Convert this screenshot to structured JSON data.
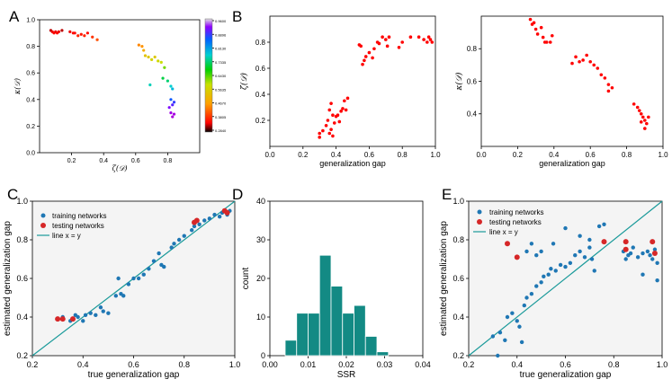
{
  "panel_letters": {
    "A": "A",
    "B": "B",
    "C": "C",
    "D": "D",
    "E": "E"
  },
  "colors": {
    "blue": "#1f77b4",
    "red": "#d62728",
    "teal": "#1a9a9a",
    "hist": "#138a84",
    "scatter_red": "#ff0000",
    "bg": "#f4f4f4"
  },
  "chart_data": [
    {
      "panel": "A",
      "type": "scatter",
      "xlabel": "ζ(𝒟)",
      "ylabel": "κ(𝒟)",
      "xlim": [
        0,
        1.0
      ],
      "ylim": [
        0,
        1.0
      ],
      "xticks": [
        "0.2",
        "0.4",
        "0.6",
        "0.8"
      ],
      "xtick_values": [
        0.2,
        0.4,
        0.6,
        0.8
      ],
      "yticks": [
        "0.0",
        "0.2",
        "0.4",
        "0.6",
        "0.8",
        "1.0"
      ],
      "ytick_values": [
        0.0,
        0.2,
        0.4,
        0.6,
        0.8,
        1.0
      ],
      "colorbar_ticks": [
        "0.9600",
        "0.8896",
        "0.8130",
        "0.7335",
        "0.6430",
        "0.5635",
        "0.4670",
        "0.3805",
        "0.2840"
      ],
      "points": [
        [
          0.07,
          0.92
        ],
        [
          0.08,
          0.91
        ],
        [
          0.09,
          0.9
        ],
        [
          0.1,
          0.91
        ],
        [
          0.11,
          0.9
        ],
        [
          0.12,
          0.91
        ],
        [
          0.14,
          0.92
        ],
        [
          0.19,
          0.91
        ],
        [
          0.21,
          0.9
        ],
        [
          0.22,
          0.9
        ],
        [
          0.24,
          0.88
        ],
        [
          0.26,
          0.89
        ],
        [
          0.28,
          0.88
        ],
        [
          0.3,
          0.9
        ],
        [
          0.33,
          0.87
        ],
        [
          0.36,
          0.85
        ],
        [
          0.62,
          0.81
        ],
        [
          0.64,
          0.8
        ],
        [
          0.65,
          0.77
        ],
        [
          0.66,
          0.73
        ],
        [
          0.68,
          0.72
        ],
        [
          0.7,
          0.7
        ],
        [
          0.72,
          0.72
        ],
        [
          0.74,
          0.69
        ],
        [
          0.76,
          0.68
        ],
        [
          0.78,
          0.64
        ],
        [
          0.69,
          0.51
        ],
        [
          0.77,
          0.56
        ],
        [
          0.8,
          0.54
        ],
        [
          0.82,
          0.5
        ],
        [
          0.83,
          0.48
        ],
        [
          0.82,
          0.4
        ],
        [
          0.84,
          0.38
        ],
        [
          0.83,
          0.36
        ],
        [
          0.81,
          0.34
        ],
        [
          0.82,
          0.3
        ],
        [
          0.84,
          0.29
        ],
        [
          0.83,
          0.27
        ]
      ]
    },
    {
      "panel": "B1",
      "type": "scatter",
      "xlabel": "generalization gap",
      "ylabel": "ζ(𝒟)",
      "xlim": [
        0.0,
        1.0
      ],
      "ylim": [
        0.0,
        1.0
      ],
      "xticks": [
        "0.0",
        "0.2",
        "0.4",
        "0.6",
        "0.8",
        "1.0"
      ],
      "xtick_values": [
        0,
        0.2,
        0.4,
        0.6,
        0.8,
        1.0
      ],
      "yticks": [
        "0.2",
        "0.4",
        "0.6",
        "0.8"
      ],
      "ytick_values": [
        0.2,
        0.4,
        0.6,
        0.8
      ],
      "points": [
        [
          0.3,
          0.07
        ],
        [
          0.3,
          0.1
        ],
        [
          0.32,
          0.12
        ],
        [
          0.34,
          0.16
        ],
        [
          0.35,
          0.2
        ],
        [
          0.36,
          0.1
        ],
        [
          0.37,
          0.13
        ],
        [
          0.38,
          0.08
        ],
        [
          0.39,
          0.18
        ],
        [
          0.4,
          0.23
        ],
        [
          0.41,
          0.24
        ],
        [
          0.42,
          0.19
        ],
        [
          0.43,
          0.27
        ],
        [
          0.44,
          0.29
        ],
        [
          0.45,
          0.35
        ],
        [
          0.46,
          0.28
        ],
        [
          0.47,
          0.37
        ],
        [
          0.36,
          0.28
        ],
        [
          0.37,
          0.33
        ],
        [
          0.38,
          0.24
        ],
        [
          0.54,
          0.78
        ],
        [
          0.55,
          0.77
        ],
        [
          0.56,
          0.63
        ],
        [
          0.57,
          0.66
        ],
        [
          0.58,
          0.69
        ],
        [
          0.6,
          0.72
        ],
        [
          0.62,
          0.68
        ],
        [
          0.63,
          0.75
        ],
        [
          0.65,
          0.8
        ],
        [
          0.66,
          0.79
        ],
        [
          0.68,
          0.84
        ],
        [
          0.7,
          0.82
        ],
        [
          0.71,
          0.77
        ],
        [
          0.72,
          0.84
        ],
        [
          0.78,
          0.76
        ],
        [
          0.8,
          0.8
        ],
        [
          0.85,
          0.84
        ],
        [
          0.9,
          0.84
        ],
        [
          0.93,
          0.82
        ],
        [
          0.95,
          0.8
        ],
        [
          0.96,
          0.84
        ],
        [
          0.97,
          0.82
        ],
        [
          0.98,
          0.8
        ]
      ]
    },
    {
      "panel": "B2",
      "type": "scatter",
      "xlabel": "generalization gap",
      "ylabel": "κ(𝒟)",
      "xlim": [
        0.0,
        1.0
      ],
      "ylim": [
        0.2,
        1.0
      ],
      "xticks": [
        "0.0",
        "0.2",
        "0.4",
        "0.6",
        "0.8",
        "1.0"
      ],
      "xtick_values": [
        0,
        0.2,
        0.4,
        0.6,
        0.8,
        1.0
      ],
      "yticks": [
        "0.4",
        "0.6",
        "0.8"
      ],
      "ytick_values": [
        0.4,
        0.6,
        0.8
      ],
      "points": [
        [
          0.27,
          0.98
        ],
        [
          0.28,
          0.95
        ],
        [
          0.29,
          0.96
        ],
        [
          0.3,
          0.92
        ],
        [
          0.31,
          0.89
        ],
        [
          0.33,
          0.93
        ],
        [
          0.34,
          0.87
        ],
        [
          0.35,
          0.84
        ],
        [
          0.36,
          0.84
        ],
        [
          0.38,
          0.84
        ],
        [
          0.39,
          0.88
        ],
        [
          0.5,
          0.71
        ],
        [
          0.52,
          0.75
        ],
        [
          0.54,
          0.72
        ],
        [
          0.56,
          0.73
        ],
        [
          0.58,
          0.76
        ],
        [
          0.6,
          0.72
        ],
        [
          0.62,
          0.7
        ],
        [
          0.64,
          0.68
        ],
        [
          0.66,
          0.64
        ],
        [
          0.68,
          0.62
        ],
        [
          0.7,
          0.58
        ],
        [
          0.72,
          0.56
        ],
        [
          0.7,
          0.54
        ],
        [
          0.84,
          0.46
        ],
        [
          0.86,
          0.44
        ],
        [
          0.87,
          0.42
        ],
        [
          0.88,
          0.4
        ],
        [
          0.89,
          0.38
        ],
        [
          0.9,
          0.36
        ],
        [
          0.91,
          0.34
        ],
        [
          0.9,
          0.31
        ],
        [
          0.92,
          0.38
        ],
        [
          0.88,
          0.35
        ]
      ]
    },
    {
      "panel": "C",
      "type": "scatter",
      "xlabel": "true generalization gap",
      "ylabel": "estimated generalization gap",
      "xlim": [
        0.2,
        1.0
      ],
      "ylim": [
        0.2,
        1.0
      ],
      "xticks": [
        "0.2",
        "0.4",
        "0.6",
        "0.8",
        "1.0"
      ],
      "xtick_values": [
        0.2,
        0.4,
        0.6,
        0.8,
        1.0
      ],
      "yticks": [
        "0.2",
        "0.4",
        "0.6",
        "0.8",
        "1.0"
      ],
      "ytick_values": [
        0.2,
        0.4,
        0.6,
        0.8,
        1.0
      ],
      "legend": [
        "training networks",
        "testing networks",
        "line x = y"
      ],
      "legend_position": "top-left",
      "training": [
        [
          0.3,
          0.39
        ],
        [
          0.32,
          0.4
        ],
        [
          0.35,
          0.38
        ],
        [
          0.37,
          0.41
        ],
        [
          0.38,
          0.4
        ],
        [
          0.4,
          0.38
        ],
        [
          0.41,
          0.41
        ],
        [
          0.43,
          0.42
        ],
        [
          0.45,
          0.41
        ],
        [
          0.47,
          0.45
        ],
        [
          0.48,
          0.43
        ],
        [
          0.5,
          0.42
        ],
        [
          0.53,
          0.51
        ],
        [
          0.54,
          0.6
        ],
        [
          0.55,
          0.52
        ],
        [
          0.56,
          0.51
        ],
        [
          0.58,
          0.57
        ],
        [
          0.6,
          0.6
        ],
        [
          0.62,
          0.6
        ],
        [
          0.64,
          0.62
        ],
        [
          0.66,
          0.65
        ],
        [
          0.68,
          0.69
        ],
        [
          0.7,
          0.73
        ],
        [
          0.71,
          0.67
        ],
        [
          0.72,
          0.66
        ],
        [
          0.75,
          0.76
        ],
        [
          0.76,
          0.78
        ],
        [
          0.78,
          0.8
        ],
        [
          0.8,
          0.82
        ],
        [
          0.83,
          0.85
        ],
        [
          0.84,
          0.87
        ],
        [
          0.86,
          0.88
        ],
        [
          0.88,
          0.9
        ],
        [
          0.9,
          0.91
        ],
        [
          0.92,
          0.93
        ],
        [
          0.94,
          0.92
        ],
        [
          0.95,
          0.94
        ],
        [
          0.96,
          0.95
        ],
        [
          0.97,
          0.93
        ],
        [
          0.98,
          0.95
        ]
      ],
      "testing": [
        [
          0.3,
          0.39
        ],
        [
          0.32,
          0.39
        ],
        [
          0.36,
          0.39
        ],
        [
          0.84,
          0.89
        ],
        [
          0.85,
          0.9
        ],
        [
          0.96,
          0.95
        ],
        [
          0.97,
          0.94
        ]
      ]
    },
    {
      "panel": "D",
      "type": "bar",
      "xlabel": "SSR",
      "ylabel": "count",
      "xlim": [
        0.0,
        0.04
      ],
      "ylim": [
        0,
        40
      ],
      "xticks": [
        "0.00",
        "0.01",
        "0.02",
        "0.03",
        "0.04"
      ],
      "xtick_values": [
        0,
        0.01,
        0.02,
        0.03,
        0.04
      ],
      "yticks": [
        "0",
        "10",
        "20",
        "30",
        "40"
      ],
      "ytick_values": [
        0,
        10,
        20,
        30,
        40
      ],
      "bin_edges": [
        0.004,
        0.007,
        0.01,
        0.013,
        0.016,
        0.019,
        0.022,
        0.025,
        0.028,
        0.031,
        0.034
      ],
      "values": [
        4,
        11,
        11,
        26,
        18,
        11,
        13,
        5,
        1,
        0
      ]
    },
    {
      "panel": "E",
      "type": "scatter",
      "xlabel": "true generalization gap",
      "ylabel": "estimated generalization gap",
      "xlim": [
        0.2,
        1.0
      ],
      "ylim": [
        0.2,
        1.0
      ],
      "xticks": [
        "0.2",
        "0.4",
        "0.6",
        "0.8",
        "1.0"
      ],
      "xtick_values": [
        0.2,
        0.4,
        0.6,
        0.8,
        1.0
      ],
      "yticks": [
        "0.2",
        "0.4",
        "0.6",
        "0.8",
        "1.0"
      ],
      "ytick_values": [
        0.2,
        0.4,
        0.6,
        0.8,
        1.0
      ],
      "legend": [
        "training networks",
        "testing networks",
        "line x = y"
      ],
      "legend_position": "top-left",
      "training": [
        [
          0.3,
          0.3
        ],
        [
          0.33,
          0.32
        ],
        [
          0.35,
          0.28
        ],
        [
          0.36,
          0.4
        ],
        [
          0.38,
          0.42
        ],
        [
          0.4,
          0.38
        ],
        [
          0.41,
          0.35
        ],
        [
          0.42,
          0.27
        ],
        [
          0.43,
          0.46
        ],
        [
          0.44,
          0.5
        ],
        [
          0.46,
          0.52
        ],
        [
          0.48,
          0.56
        ],
        [
          0.5,
          0.58
        ],
        [
          0.51,
          0.61
        ],
        [
          0.53,
          0.62
        ],
        [
          0.54,
          0.65
        ],
        [
          0.56,
          0.64
        ],
        [
          0.58,
          0.67
        ],
        [
          0.6,
          0.66
        ],
        [
          0.62,
          0.68
        ],
        [
          0.64,
          0.72
        ],
        [
          0.66,
          0.74
        ],
        [
          0.68,
          0.71
        ],
        [
          0.7,
          0.76
        ],
        [
          0.71,
          0.7
        ],
        [
          0.72,
          0.64
        ],
        [
          0.44,
          0.74
        ],
        [
          0.46,
          0.78
        ],
        [
          0.48,
          0.72
        ],
        [
          0.5,
          0.74
        ],
        [
          0.55,
          0.78
        ],
        [
          0.6,
          0.86
        ],
        [
          0.66,
          0.82
        ],
        [
          0.7,
          0.8
        ],
        [
          0.74,
          0.87
        ],
        [
          0.76,
          0.88
        ],
        [
          0.84,
          0.74
        ],
        [
          0.85,
          0.7
        ],
        [
          0.86,
          0.72
        ],
        [
          0.87,
          0.73
        ],
        [
          0.88,
          0.76
        ],
        [
          0.9,
          0.71
        ],
        [
          0.92,
          0.73
        ],
        [
          0.94,
          0.74
        ],
        [
          0.95,
          0.72
        ],
        [
          0.96,
          0.7
        ],
        [
          0.97,
          0.75
        ],
        [
          0.98,
          0.68
        ],
        [
          0.92,
          0.62
        ],
        [
          0.98,
          0.59
        ],
        [
          0.32,
          0.2
        ]
      ],
      "testing": [
        [
          0.36,
          0.78
        ],
        [
          0.4,
          0.71
        ],
        [
          0.76,
          0.79
        ],
        [
          0.85,
          0.79
        ],
        [
          0.85,
          0.75
        ],
        [
          0.96,
          0.79
        ],
        [
          0.97,
          0.73
        ]
      ]
    }
  ]
}
